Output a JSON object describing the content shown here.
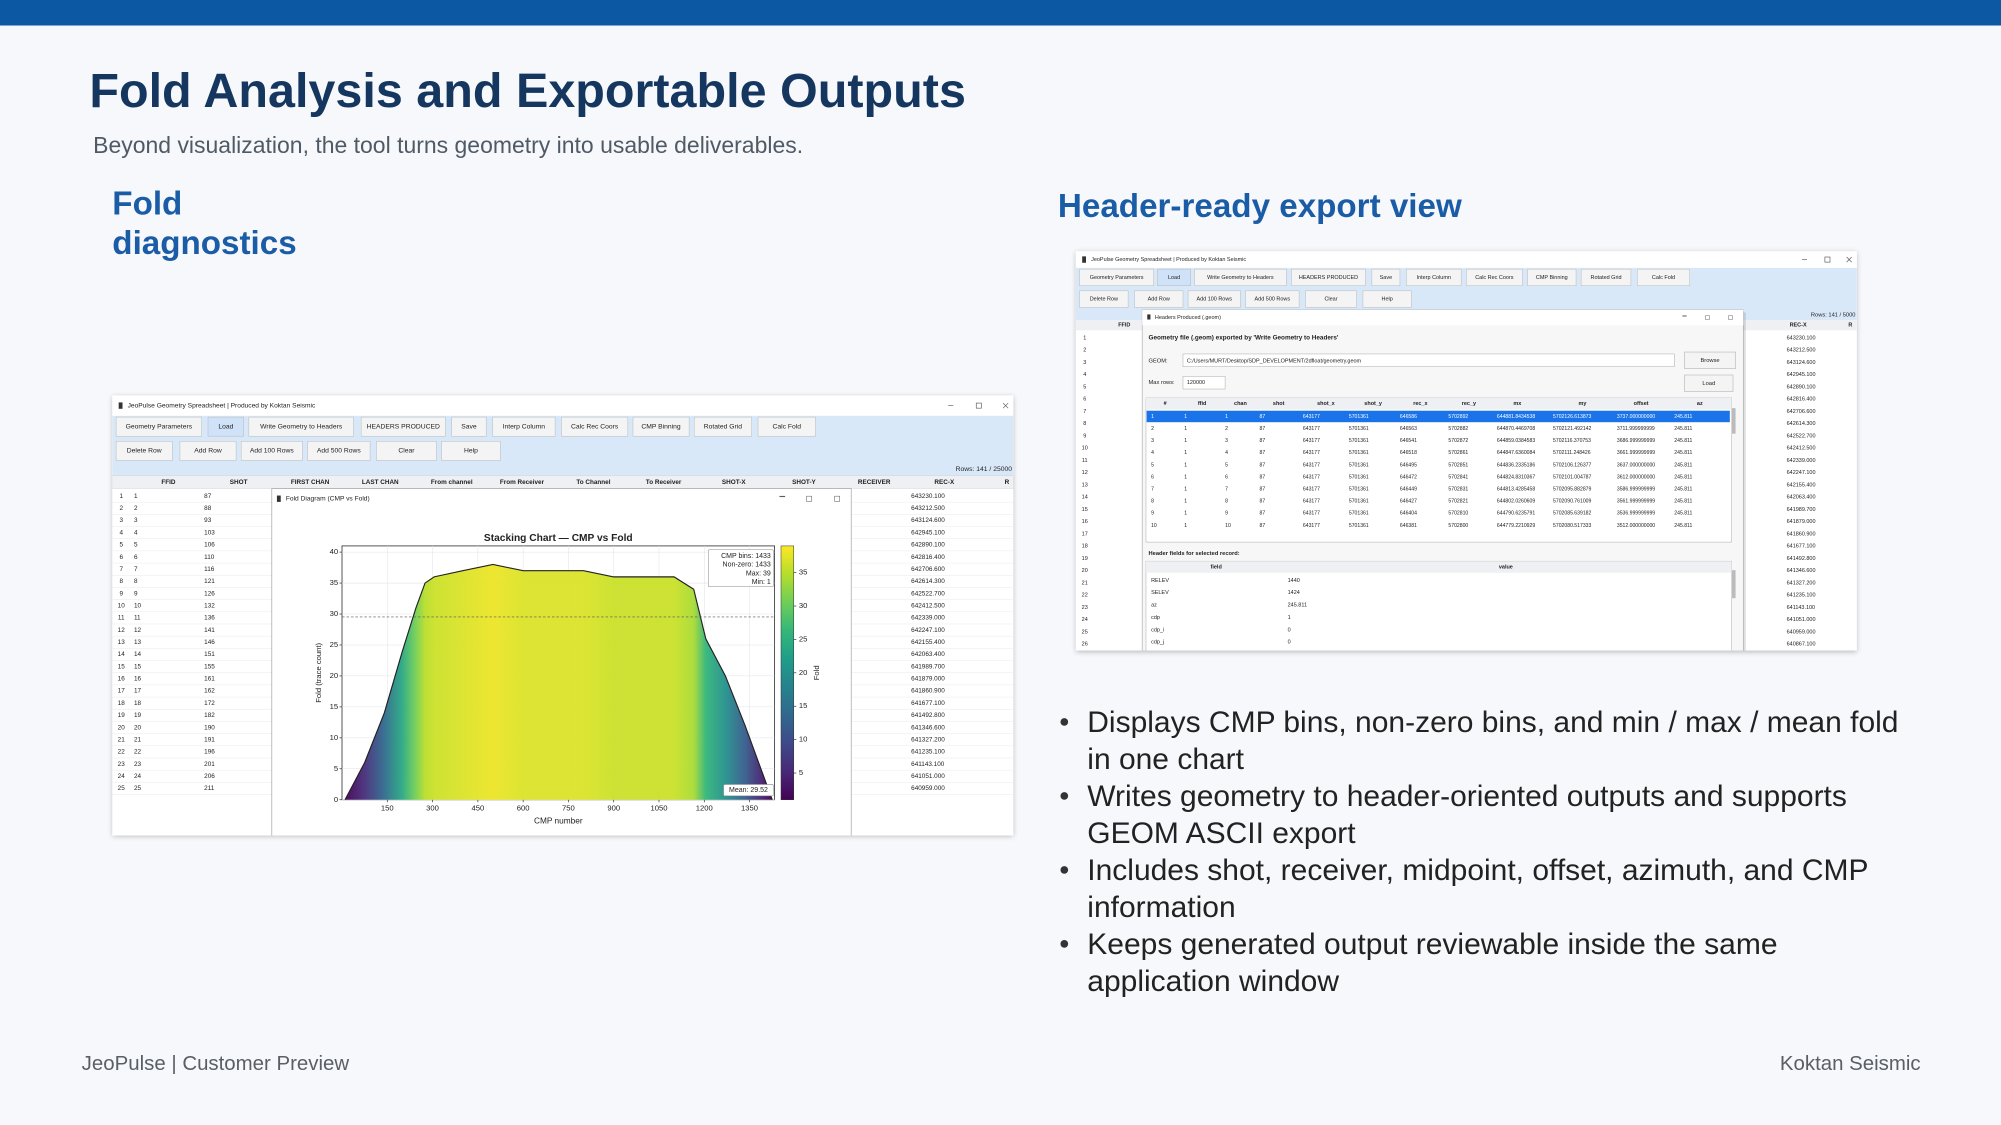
{
  "header": {
    "title": "Fold Analysis and Exportable Outputs",
    "subtitle": "Beyond visualization, the tool turns geometry into usable deliverables."
  },
  "left": {
    "heading": "Fold diagnostics",
    "screenshot": {
      "window_title": "JeoPulse Geometry Spreadsheet | Produced by Koktan Seismic",
      "toolbar": [
        "Geometry Parameters",
        "Load",
        "Write Geometry to Headers",
        "HEADERS PRODUCED",
        "Save",
        "Interp Column",
        "Calc Rec Coors",
        "CMP Binning",
        "Rotated Grid",
        "Calc Fold"
      ],
      "toolbar2": [
        "Delete Row",
        "Add Row",
        "Add 100 Rows",
        "Add 500 Rows",
        "Clear",
        "Help"
      ],
      "rows_info": "Rows: 141 / 25000",
      "columns": [
        "FFID",
        "SHOT",
        "FIRST CHAN",
        "LAST CHAN",
        "From channel",
        "From Receiver",
        "To Channel",
        "To Receiver",
        "SHOT-X",
        "SHOT-Y",
        "RECEIVER",
        "REC-X",
        "R"
      ],
      "rows": [
        [
          "1",
          "1",
          "87",
          "643230.100"
        ],
        [
          "2",
          "2",
          "88",
          "643212.500"
        ],
        [
          "3",
          "3",
          "93",
          "643124.600"
        ],
        [
          "4",
          "4",
          "103",
          "642945.100"
        ],
        [
          "5",
          "5",
          "106",
          "642890.100"
        ],
        [
          "6",
          "6",
          "110",
          "642816.400"
        ],
        [
          "7",
          "7",
          "116",
          "642706.600"
        ],
        [
          "8",
          "8",
          "121",
          "642614.300"
        ],
        [
          "9",
          "9",
          "126",
          "642522.700"
        ],
        [
          "10",
          "10",
          "132",
          "642412.500"
        ],
        [
          "11",
          "11",
          "136",
          "642339.000"
        ],
        [
          "12",
          "12",
          "141",
          "642247.100"
        ],
        [
          "13",
          "13",
          "146",
          "642155.400"
        ],
        [
          "14",
          "14",
          "151",
          "642063.400"
        ],
        [
          "15",
          "15",
          "155",
          "641989.700"
        ],
        [
          "16",
          "16",
          "161",
          "641879.000"
        ],
        [
          "17",
          "17",
          "162",
          "641860.900"
        ],
        [
          "18",
          "18",
          "172",
          "641677.100"
        ],
        [
          "19",
          "19",
          "182",
          "641492.800"
        ],
        [
          "20",
          "20",
          "190",
          "641346.600"
        ],
        [
          "21",
          "21",
          "191",
          "641327.200"
        ],
        [
          "22",
          "22",
          "196",
          "641235.100"
        ],
        [
          "23",
          "23",
          "201",
          "641143.100"
        ],
        [
          "24",
          "24",
          "206",
          "641051.000"
        ],
        [
          "25",
          "25",
          "211",
          "640959.000"
        ]
      ],
      "dialog": {
        "title": "Fold Diagram (CMP vs Fold)",
        "chart": {
          "type": "area",
          "title": "Stacking Chart — CMP vs Fold",
          "x_label": "CMP number",
          "y_label": "Fold (trace count)",
          "x": [
            10,
            75,
            140,
            200,
            245,
            275,
            305,
            400,
            500,
            600,
            700,
            800,
            900,
            1000,
            1100,
            1165,
            1205,
            1270,
            1335,
            1395,
            1425
          ],
          "values": [
            0,
            6,
            14,
            24,
            31,
            35,
            36,
            37,
            38,
            37,
            37,
            37,
            36,
            36,
            36,
            34,
            26,
            20,
            12,
            4,
            0
          ],
          "xlim": [
            0,
            1433
          ],
          "ylim": [
            0,
            41
          ],
          "xticks": [
            150,
            300,
            450,
            600,
            750,
            900,
            1050,
            1200,
            1350
          ],
          "yticks": [
            0,
            5,
            10,
            15,
            20,
            25,
            30,
            35,
            40
          ],
          "grid": true,
          "stats": [
            "CMP bins: 1433",
            "Non-zero: 1433",
            "Max: 39",
            "Min: 1"
          ],
          "mean": {
            "value": 29.52,
            "label": "Mean: 29.52"
          },
          "colorbar": {
            "label": "Fold",
            "lim": [
              1,
              39
            ],
            "ticks": [
              5,
              10,
              15,
              20,
              25,
              30,
              35
            ]
          }
        }
      }
    }
  },
  "right": {
    "heading": "Header-ready export view",
    "screenshot": {
      "window_title": "JeoPulse Geometry Spreadsheet | Produced by Koktan Seismic",
      "toolbar": [
        "Geometry Parameters",
        "Load",
        "Write Geometry to Headers",
        "HEADERS PRODUCED",
        "Save",
        "Interp Column",
        "Calc Rec Coors",
        "CMP Binning",
        "Rotated Grid",
        "Calc Fold"
      ],
      "toolbar2": [
        "Delete Row",
        "Add Row",
        "Add 100 Rows",
        "Add 500 Rows",
        "Clear",
        "Help"
      ],
      "rows_info": "Rows: 141 / 5000",
      "columns": [
        "FFID",
        "REC-X",
        "R"
      ],
      "rows": [
        [
          "1",
          "643230.100"
        ],
        [
          "2",
          "643212.500"
        ],
        [
          "3",
          "643124.600"
        ],
        [
          "4",
          "642945.100"
        ],
        [
          "5",
          "642890.100"
        ],
        [
          "6",
          "642816.400"
        ],
        [
          "7",
          "642706.600"
        ],
        [
          "8",
          "642614.300"
        ],
        [
          "9",
          "642522.700"
        ],
        [
          "10",
          "642412.500"
        ],
        [
          "11",
          "642339.000"
        ],
        [
          "12",
          "642247.100"
        ],
        [
          "13",
          "642155.400"
        ],
        [
          "14",
          "642063.400"
        ],
        [
          "15",
          "641989.700"
        ],
        [
          "16",
          "641879.000"
        ],
        [
          "17",
          "641860.900"
        ],
        [
          "18",
          "641677.100"
        ],
        [
          "19",
          "641492.800"
        ],
        [
          "20",
          "641346.600"
        ],
        [
          "21",
          "641327.200"
        ],
        [
          "22",
          "641235.100"
        ],
        [
          "23",
          "641143.100"
        ],
        [
          "24",
          "641051.000"
        ],
        [
          "25",
          "640959.000"
        ],
        [
          "26",
          "640867.100"
        ]
      ],
      "dialog": {
        "title": "Headers Produced (.geom)",
        "heading": "Geometry file (.geom) exported by 'Write Geometry to Headers'",
        "geom_label": "GEOM:",
        "geom_path": "C:/Users/MURT/Desktop/SDP_DEVELOPMENT/2dfloat/geometry.geom",
        "browse": "Browse",
        "max_rows_label": "Max rows:",
        "max_rows": "120000",
        "load": "Load",
        "table": {
          "columns": [
            "#",
            "ffid",
            "chan",
            "shot",
            "shot_x",
            "shot_y",
            "rec_x",
            "rec_y",
            "mx",
            "my",
            "offset",
            "az"
          ],
          "rows": [
            [
              "1",
              "1",
              "1",
              "87",
              "643177",
              "5701361",
              "646586",
              "5702892",
              "644881.8434538",
              "5702126.613873",
              "3737.000000000",
              "245.811"
            ],
            [
              "2",
              "1",
              "2",
              "87",
              "643177",
              "5701361",
              "646563",
              "5702882",
              "644870.4469708",
              "5702121.492142",
              "3711.999999999",
              "245.811"
            ],
            [
              "3",
              "1",
              "3",
              "87",
              "643177",
              "5701361",
              "646541",
              "5702872",
              "644859.0384583",
              "5702116.370753",
              "3686.999999999",
              "245.811"
            ],
            [
              "4",
              "1",
              "4",
              "87",
              "643177",
              "5701361",
              "646518",
              "5702861",
              "644847.6360084",
              "5702111.248426",
              "3661.999999999",
              "245.811"
            ],
            [
              "5",
              "1",
              "5",
              "87",
              "643177",
              "5701361",
              "646495",
              "5702851",
              "644836.2335186",
              "5702106.126377",
              "3637.000000000",
              "245.811"
            ],
            [
              "6",
              "1",
              "6",
              "87",
              "643177",
              "5701361",
              "646472",
              "5702841",
              "644824.8310367",
              "5702101.004787",
              "3612.000000000",
              "245.811"
            ],
            [
              "7",
              "1",
              "7",
              "87",
              "643177",
              "5701361",
              "646449",
              "5702831",
              "644813.4285458",
              "5702095.882879",
              "3586.999999999",
              "245.811"
            ],
            [
              "8",
              "1",
              "8",
              "87",
              "643177",
              "5701361",
              "646427",
              "5702821",
              "644802.0260609",
              "5702090.761009",
              "3561.999999999",
              "245.811"
            ],
            [
              "9",
              "1",
              "9",
              "87",
              "643177",
              "5701361",
              "646404",
              "5702810",
              "644790.6235791",
              "5702085.639182",
              "3536.999999999",
              "245.811"
            ],
            [
              "10",
              "1",
              "10",
              "87",
              "643177",
              "5701361",
              "646381",
              "5702800",
              "644779.2210929",
              "5702080.517333",
              "3512.000000000",
              "245.811"
            ]
          ]
        },
        "fields_heading": "Header fields for selected record:",
        "fields": {
          "columns": [
            "field",
            "value"
          ],
          "rows": [
            [
              "RELEV",
              "1440"
            ],
            [
              "SELEV",
              "1424"
            ],
            [
              "az",
              "245.811"
            ],
            [
              "cdp",
              "1"
            ],
            [
              "cdp_i",
              "0"
            ],
            [
              "cdp_j",
              "0"
            ]
          ]
        }
      }
    }
  },
  "bullets": [
    "Displays CMP bins, non-zero bins, and min / max / mean fold in one chart",
    "Writes geometry to header-oriented outputs and supports GEOM ASCII export",
    "Includes shot, receiver, midpoint, offset, azimuth, and CMP information",
    "Keeps generated output reviewable inside the same application window"
  ],
  "footer": {
    "left": "JeoPulse | Customer Preview",
    "right": "Koktan Seismic"
  }
}
